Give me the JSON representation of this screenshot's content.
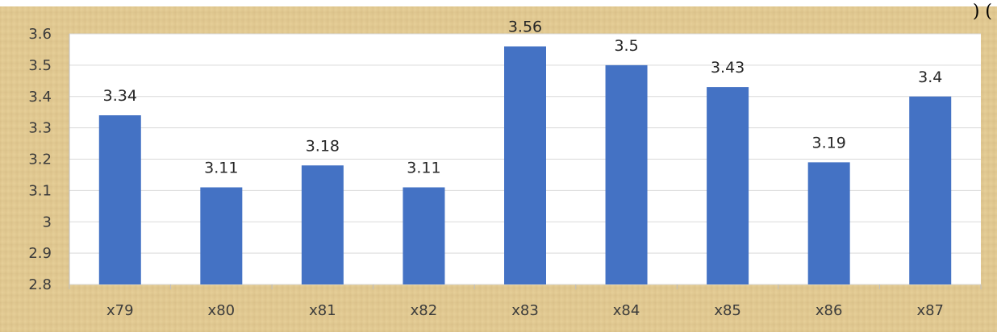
{
  "header_fragment": ")  (",
  "chart_data": {
    "type": "bar",
    "categories": [
      "x79",
      "x80",
      "x81",
      "x82",
      "x83",
      "x84",
      "x85",
      "x86",
      "x87"
    ],
    "values": [
      3.34,
      3.11,
      3.18,
      3.11,
      3.56,
      3.5,
      3.43,
      3.19,
      3.4
    ],
    "data_labels": [
      "3.34",
      "3.11",
      "3.18",
      "3.11",
      "3.56",
      "3.5",
      "3.43",
      "3.19",
      "3.4"
    ],
    "yticks": [
      2.8,
      2.9,
      3.0,
      3.1,
      3.2,
      3.3,
      3.4,
      3.5,
      3.6
    ],
    "ytick_labels": [
      "2.8",
      "2.9",
      "3",
      "3.1",
      "3.2",
      "3.3",
      "3.4",
      "3.5",
      "3.6"
    ],
    "ylim": [
      2.8,
      3.6
    ],
    "grid": true,
    "title": "",
    "xlabel": "",
    "ylabel": "",
    "colors": {
      "bar": "#4472c4",
      "grid": "#d9d9d9",
      "plot_bg": "#ffffff",
      "frame_bg": "#e6cf98"
    }
  }
}
